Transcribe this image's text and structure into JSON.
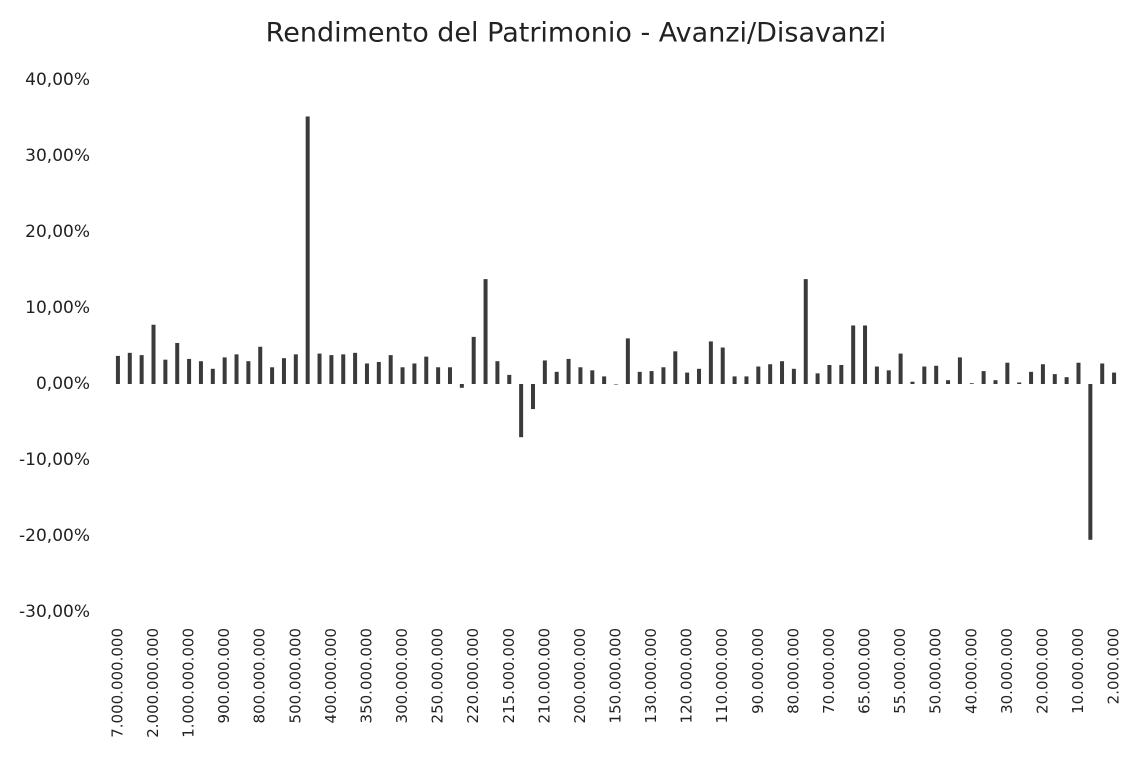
{
  "chart_data": {
    "type": "bar",
    "title": "Rendimento del Patrimonio - Avanzi/Disavanzi",
    "categories": [
      "7.000.000.000",
      null,
      null,
      "2.000.000.000",
      null,
      null,
      "1.000.000.000",
      null,
      null,
      "900.000.000",
      null,
      null,
      "800.000.000",
      null,
      null,
      "500.000.000",
      null,
      null,
      "400.000.000",
      null,
      null,
      "350.000.000",
      null,
      null,
      "300.000.000",
      null,
      null,
      "250.000.000",
      null,
      null,
      "220.000.000",
      null,
      null,
      "215.000.000",
      null,
      null,
      "210.000.000",
      null,
      null,
      "200.000.000",
      null,
      null,
      "150.000.000",
      null,
      null,
      "130.000.000",
      null,
      null,
      "120.000.000",
      null,
      null,
      "110.000.000",
      null,
      null,
      "90.000.000",
      null,
      null,
      "80.000.000",
      null,
      null,
      "70.000.000",
      null,
      null,
      "65.000.000",
      null,
      null,
      "55.000.000",
      null,
      null,
      "50.000.000",
      null,
      null,
      "40.000.000",
      null,
      null,
      "30.000.000",
      null,
      null,
      "20.000.000",
      null,
      null,
      "10.000.000",
      null,
      null,
      "2.000.000"
    ],
    "values": [
      3.7,
      4.1,
      3.8,
      7.8,
      3.2,
      5.4,
      3.3,
      3.0,
      2.0,
      3.5,
      3.9,
      3.0,
      4.9,
      2.2,
      3.4,
      3.9,
      35.2,
      4.0,
      3.8,
      3.9,
      4.1,
      2.7,
      2.9,
      3.8,
      2.2,
      2.7,
      3.6,
      2.2,
      2.2,
      -0.5,
      6.2,
      13.8,
      3.0,
      1.2,
      -7.0,
      -3.3,
      3.1,
      1.6,
      3.3,
      2.2,
      1.8,
      1.0,
      0,
      6.0,
      1.6,
      1.7,
      2.2,
      4.3,
      1.5,
      2.0,
      5.6,
      4.8,
      1.0,
      1.0,
      2.3,
      2.6,
      3.0,
      2.0,
      13.8,
      1.4,
      2.5,
      2.5,
      7.7,
      7.7,
      2.3,
      1.8,
      4.0,
      0.3,
      2.3,
      2.4,
      0.5,
      3.5,
      0.1,
      1.7,
      0.5,
      2.8,
      0.2,
      1.6,
      2.6,
      1.3,
      0.9,
      2.8,
      -20.5,
      2.7,
      1.5
    ],
    "color": "#3a3a3a",
    "ylim": [
      -30,
      40
    ],
    "yticks": [
      {
        "value": -30,
        "label": "-30,00%"
      },
      {
        "value": -20,
        "label": "-20,00%"
      },
      {
        "value": -10,
        "label": "-10,00%"
      },
      {
        "value": 0,
        "label": "0,00%"
      },
      {
        "value": 10,
        "label": "10,00%"
      },
      {
        "value": 20,
        "label": "20,00%"
      },
      {
        "value": 30,
        "label": "30,00%"
      },
      {
        "value": 40,
        "label": "40,00%"
      }
    ],
    "grid": false
  }
}
